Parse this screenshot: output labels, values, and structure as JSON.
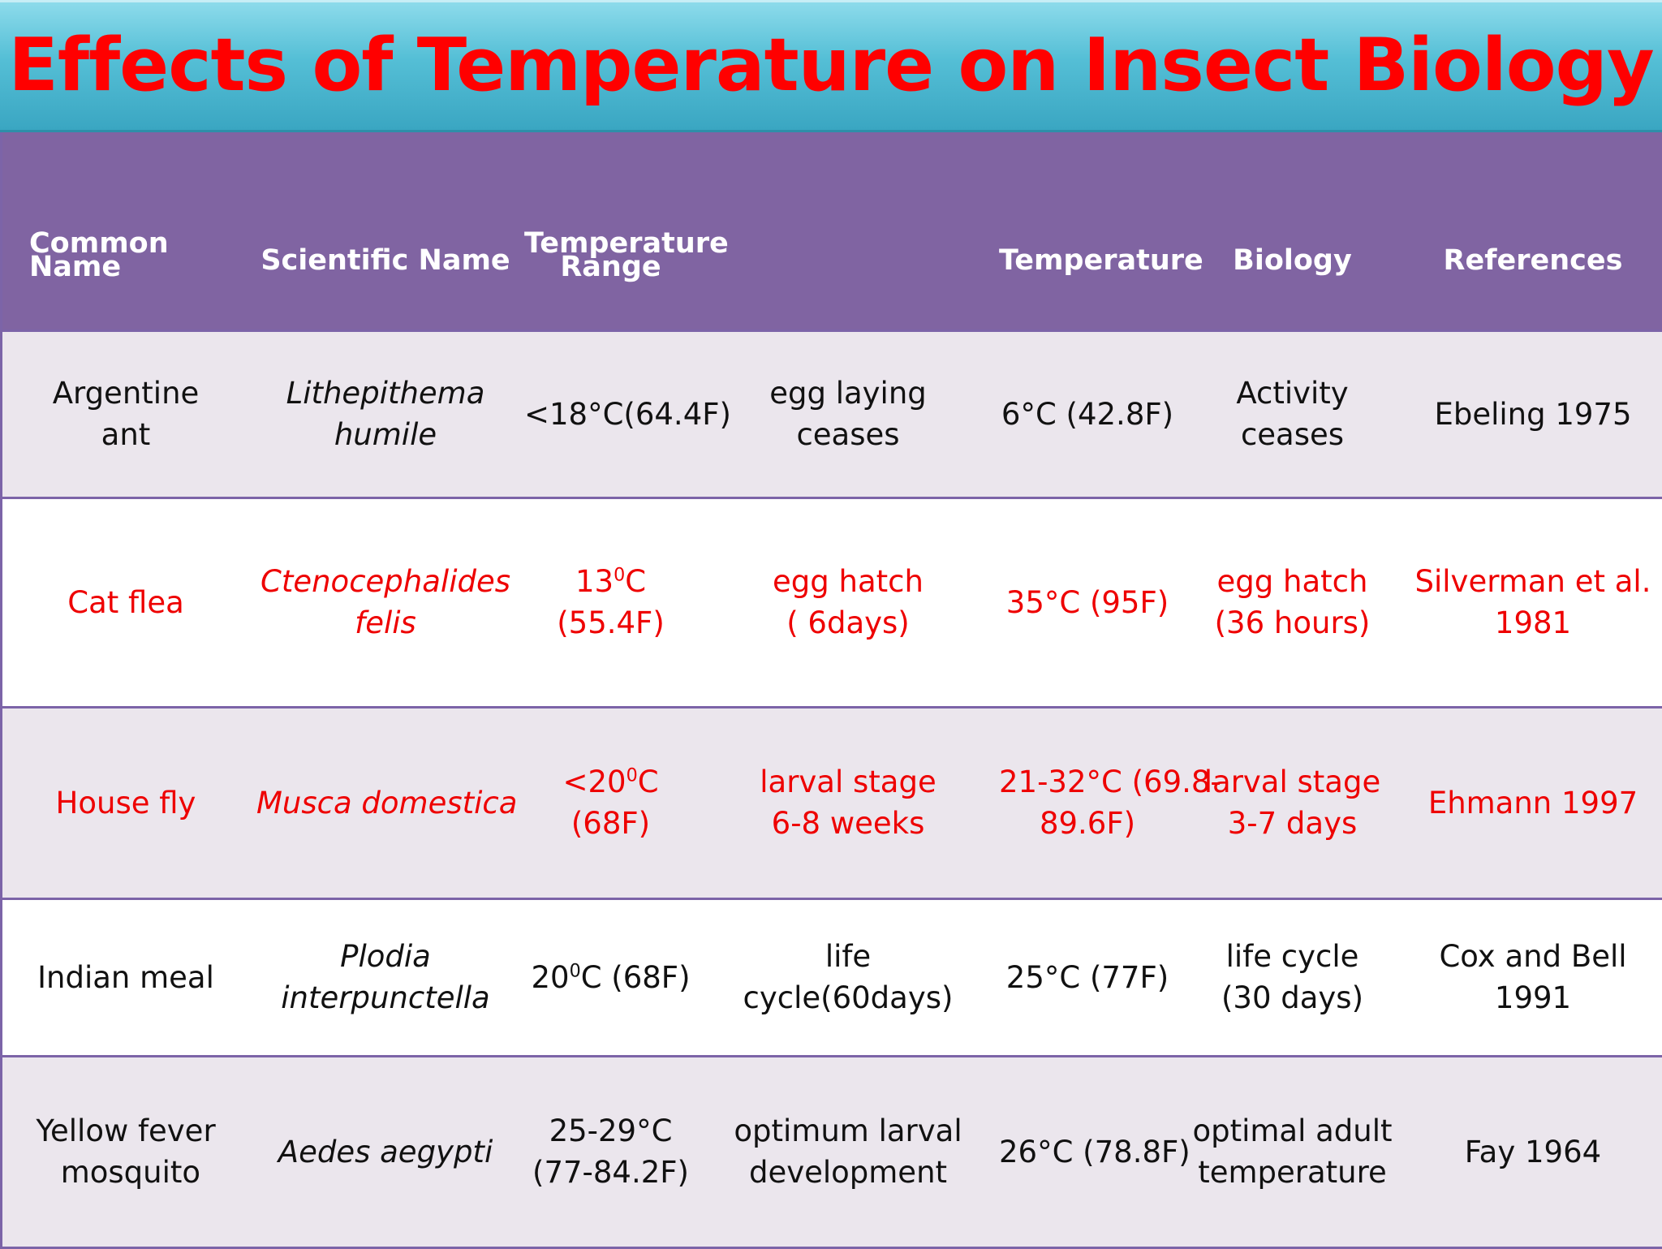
{
  "title": "Effects of Temperature on Insect Biology",
  "colors": {
    "title_text": "#ff0000",
    "title_bar": "#55bfd6",
    "header_bg": "#8064a2",
    "row_shaded": "#ebe6ed",
    "highlight_text": "#ee0000"
  },
  "table": {
    "headers": {
      "common_name": [
        "Common",
        "Name"
      ],
      "scientific_name": "Scientific Name",
      "temperature_range": [
        "Temperature",
        "Range"
      ],
      "effect": "",
      "temperature": "Temperature",
      "biology": "Biology",
      "references": "References"
    },
    "rows": [
      {
        "common_name": [
          "Argentine",
          "ant"
        ],
        "scientific_name": [
          "Lithepithema",
          "humile"
        ],
        "temperature_range": {
          "text": "<18°C(64.4F)"
        },
        "effect": [
          "egg laying",
          "ceases"
        ],
        "temperature": [
          "6°C (42.8F)"
        ],
        "biology": [
          "Activity",
          "ceases"
        ],
        "references": [
          "Ebeling 1975"
        ]
      },
      {
        "common_name": [
          "Cat flea"
        ],
        "scientific_name": [
          "Ctenocephalides",
          "felis"
        ],
        "temperature_range": {
          "pre": "13",
          "sup": "0",
          "post": "C (55.4F)"
        },
        "effect": [
          "egg hatch",
          "( 6days)"
        ],
        "temperature": [
          "35°C (95F)"
        ],
        "biology": [
          "egg hatch",
          "(36 hours)"
        ],
        "references": [
          "Silverman et al.",
          "1981"
        ]
      },
      {
        "common_name": [
          "House fly"
        ],
        "scientific_name": [
          "Musca domestica"
        ],
        "temperature_range": {
          "pre": "<20",
          "sup": "0",
          "post": "C (68F)"
        },
        "effect": [
          "larval stage",
          "6-8 weeks"
        ],
        "temperature": [
          "21-32°C (69.8-",
          "89.6F)"
        ],
        "biology": [
          "larval stage",
          "3-7 days"
        ],
        "references": [
          "Ehmann 1997"
        ]
      },
      {
        "common_name": [
          "Indian meal"
        ],
        "scientific_name": [
          "Plodia",
          "interpunctella"
        ],
        "temperature_range": {
          "pre": "20",
          "sup": "0",
          "post": "C (68F)"
        },
        "effect": [
          "life",
          "cycle(60days)"
        ],
        "temperature": [
          "25°C (77F)"
        ],
        "biology": [
          "life cycle",
          "(30 days)"
        ],
        "references": [
          "Cox and Bell",
          "1991"
        ]
      },
      {
        "common_name": [
          "Yellow fever",
          " mosquito"
        ],
        "scientific_name": [
          "Aedes aegypti"
        ],
        "temperature_range": {
          "lines": [
            "25-29°C",
            "(77-84.2F)"
          ]
        },
        "effect": [
          "optimum larval",
          "development"
        ],
        "temperature": [
          "26°C (78.8F)"
        ],
        "biology": [
          "optimal adult",
          "temperature"
        ],
        "references": [
          "Fay 1964"
        ]
      }
    ]
  }
}
